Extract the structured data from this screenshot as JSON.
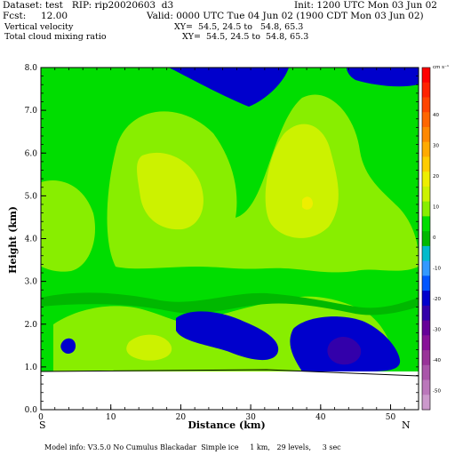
{
  "header": {
    "dataset": "Dataset: test   RIP: rip20020603  d3",
    "init": "Init: 1200 UTC Mon 03 Jun 02",
    "fcst": "Fcst:     12.00",
    "valid": "Valid: 0000 UTC Tue 04 Jun 02 (1900 CDT Mon 03 Jun 02)",
    "field1": "Vertical velocity",
    "xy1": "XY=  54.5, 24.5 to   54.8, 65.3",
    "field2": "Total cloud mixing ratio",
    "xy2": "XY=  54.5, 24.5 to  54.8, 65.3"
  },
  "footer": "Model info: V3.5.0 No Cumulus Blackadar  Simple ice     1 km,   29 levels,     3 sec",
  "colors": {
    "ground": "#ffffff",
    "base": "#00dd00",
    "light": "#88ee00",
    "yellowgreen": "#ccf200",
    "yellow": "#eeee00",
    "darkgreen": "#00b800",
    "cyan": "#00bbcc",
    "blue": "#0000cc",
    "paleblue": "#3399ff"
  },
  "chart_data": {
    "type": "heatmap",
    "xlabel": "Distance (km)",
    "ylabel": "Height (km)",
    "xlim": [
      0,
      54
    ],
    "ylim": [
      0,
      8
    ],
    "x_ticks": [
      "0",
      "10",
      "20",
      "30",
      "40",
      "50"
    ],
    "y_ticks": [
      "0.0",
      "1.0",
      "2.0",
      "3.0",
      "4.0",
      "5.0",
      "6.0",
      "7.0",
      "8.0"
    ],
    "x_tick_values": [
      0,
      10,
      20,
      30,
      40,
      50
    ],
    "y_tick_values": [
      0,
      1,
      2,
      3,
      4,
      5,
      6,
      7,
      8
    ],
    "left_end_label": "S",
    "right_end_label": "N",
    "colorbar": {
      "unit": "cm s⁻¹",
      "labels": [
        "40",
        "30",
        "20",
        "10",
        "0",
        "-10",
        "-20",
        "-30",
        "-40",
        "-50"
      ],
      "colors": [
        "#ff0000",
        "#ff2200",
        "#ff4400",
        "#ff6600",
        "#ff8800",
        "#ffaa00",
        "#ffcc00",
        "#eeee00",
        "#ccf200",
        "#88ee00",
        "#00dd00",
        "#00b800",
        "#00bbcc",
        "#3399ff",
        "#0055ff",
        "#0000cc",
        "#3300aa",
        "#660099",
        "#881199",
        "#993399",
        "#aa55aa",
        "#bb77bb",
        "#cc99cc"
      ]
    }
  }
}
